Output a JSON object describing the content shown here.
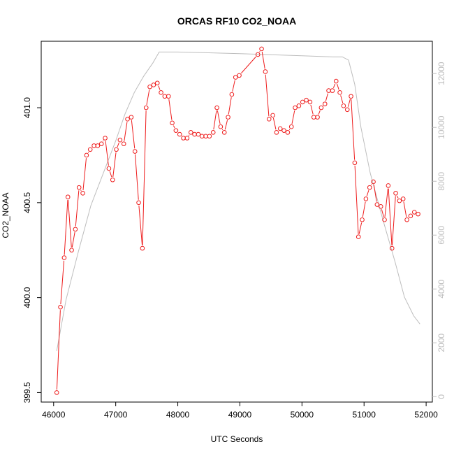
{
  "chart_data": {
    "type": "line",
    "title": "ORCAS RF10 CO2_NOAA",
    "xlabel": "UTC Seconds",
    "ylabel": "CO2_NOAA",
    "y2label": "",
    "xlim": [
      45800,
      52100
    ],
    "ylim": [
      399.45,
      401.35
    ],
    "y2lim": [
      -200,
      13200
    ],
    "x_ticks": [
      46000,
      47000,
      48000,
      49000,
      50000,
      51000,
      52000
    ],
    "y_ticks": [
      399.5,
      400.0,
      400.5,
      401.0
    ],
    "y2_ticks": [
      0,
      2000,
      4000,
      6000,
      8000,
      10000,
      12000
    ],
    "grid": false,
    "legend": "none",
    "colors": {
      "co2": "#ee1c1c",
      "altitude": "#bdbdbd",
      "axis": "#000000",
      "y2_axis": "#bdbdbd"
    },
    "series": [
      {
        "axis": "left",
        "style": "line+open-circle",
        "points": [
          [
            46050,
            399.5
          ],
          [
            46110,
            399.95
          ],
          [
            46170,
            400.21
          ],
          [
            46230,
            400.53
          ],
          [
            46290,
            400.25
          ],
          [
            46350,
            400.36
          ],
          [
            46410,
            400.58
          ],
          [
            46470,
            400.55
          ],
          [
            46530,
            400.75
          ],
          [
            46590,
            400.78
          ],
          [
            46650,
            400.8
          ],
          [
            46710,
            400.8
          ],
          [
            46770,
            400.81
          ],
          [
            46830,
            400.84
          ],
          [
            46890,
            400.68
          ],
          [
            46950,
            400.62
          ],
          [
            47010,
            400.78
          ],
          [
            47070,
            400.83
          ],
          [
            47130,
            400.81
          ],
          [
            47190,
            400.94
          ],
          [
            47250,
            400.95
          ],
          [
            47310,
            400.77
          ],
          [
            47370,
            400.5
          ],
          [
            47430,
            400.26
          ],
          [
            47490,
            401.0
          ],
          [
            47550,
            401.11
          ],
          [
            47610,
            401.12
          ],
          [
            47670,
            401.13
          ],
          [
            47730,
            401.08
          ],
          [
            47790,
            401.06
          ],
          [
            47850,
            401.06
          ],
          [
            47910,
            400.92
          ],
          [
            47970,
            400.88
          ],
          [
            48030,
            400.86
          ],
          [
            48090,
            400.84
          ],
          [
            48150,
            400.84
          ],
          [
            48210,
            400.87
          ],
          [
            48270,
            400.86
          ],
          [
            48330,
            400.86
          ],
          [
            48390,
            400.85
          ],
          [
            48450,
            400.85
          ],
          [
            48510,
            400.85
          ],
          [
            48570,
            400.87
          ],
          [
            48630,
            401.0
          ],
          [
            48690,
            400.9
          ],
          [
            48750,
            400.87
          ],
          [
            48810,
            400.95
          ],
          [
            48870,
            401.07
          ],
          [
            48930,
            401.16
          ],
          [
            48990,
            401.17
          ],
          [
            49290,
            401.28
          ],
          [
            49350,
            401.31
          ],
          [
            49410,
            401.19
          ],
          [
            49470,
            400.94
          ],
          [
            49530,
            400.96
          ],
          [
            49590,
            400.87
          ],
          [
            49650,
            400.89
          ],
          [
            49710,
            400.88
          ],
          [
            49770,
            400.87
          ],
          [
            49830,
            400.9
          ],
          [
            49890,
            401.0
          ],
          [
            49950,
            401.01
          ],
          [
            50010,
            401.03
          ],
          [
            50070,
            401.04
          ],
          [
            50130,
            401.03
          ],
          [
            50190,
            400.95
          ],
          [
            50250,
            400.95
          ],
          [
            50310,
            401.0
          ],
          [
            50370,
            401.02
          ],
          [
            50430,
            401.09
          ],
          [
            50490,
            401.09
          ],
          [
            50550,
            401.14
          ],
          [
            50610,
            401.08
          ],
          [
            50670,
            401.01
          ],
          [
            50730,
            400.99
          ],
          [
            50790,
            401.06
          ],
          [
            50850,
            400.71
          ],
          [
            50910,
            400.32
          ],
          [
            50970,
            400.41
          ],
          [
            51030,
            400.52
          ],
          [
            51090,
            400.58
          ],
          [
            51150,
            400.61
          ],
          [
            51210,
            400.49
          ],
          [
            51270,
            400.48
          ],
          [
            51330,
            400.41
          ],
          [
            51390,
            400.59
          ],
          [
            51450,
            400.26
          ],
          [
            51510,
            400.55
          ],
          [
            51570,
            400.51
          ],
          [
            51630,
            400.52
          ],
          [
            51690,
            400.41
          ],
          [
            51750,
            400.43
          ],
          [
            51810,
            400.45
          ],
          [
            51870,
            400.44
          ]
        ]
      },
      {
        "axis": "right",
        "style": "line",
        "points": [
          [
            46050,
            1700
          ],
          [
            46200,
            3600
          ],
          [
            46400,
            5400
          ],
          [
            46600,
            7100
          ],
          [
            46800,
            8300
          ],
          [
            47000,
            9500
          ],
          [
            47150,
            10500
          ],
          [
            47300,
            11300
          ],
          [
            47450,
            11900
          ],
          [
            47600,
            12400
          ],
          [
            47700,
            12800
          ],
          [
            48000,
            12800
          ],
          [
            48500,
            12770
          ],
          [
            49000,
            12740
          ],
          [
            49500,
            12700
          ],
          [
            50000,
            12660
          ],
          [
            50500,
            12620
          ],
          [
            50650,
            12620
          ],
          [
            50750,
            12500
          ],
          [
            50850,
            11600
          ],
          [
            50950,
            10000
          ],
          [
            51100,
            8300
          ],
          [
            51300,
            6600
          ],
          [
            51500,
            5000
          ],
          [
            51650,
            3700
          ],
          [
            51800,
            3000
          ],
          [
            51900,
            2700
          ]
        ]
      }
    ]
  }
}
